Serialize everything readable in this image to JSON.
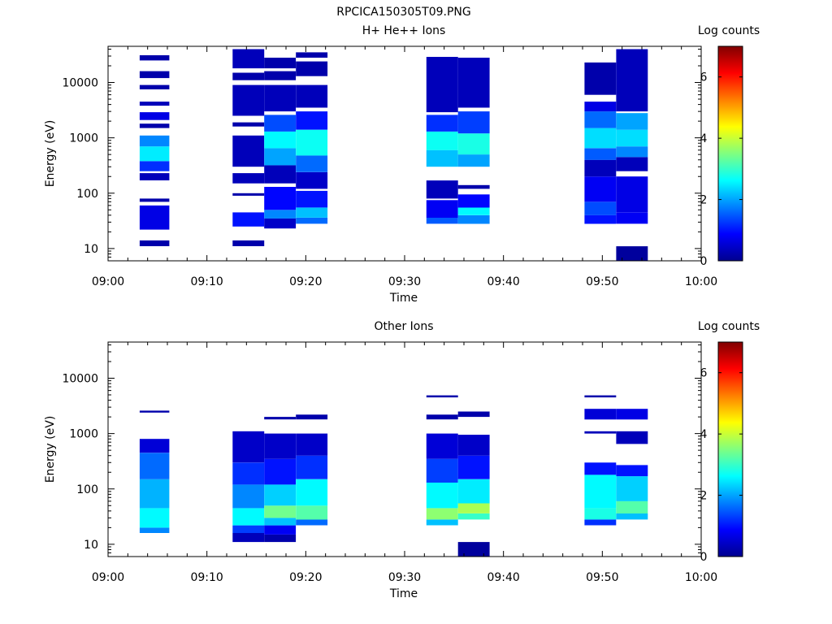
{
  "figure_title": "RPCICA150305T09.PNG",
  "chart_data": [
    {
      "type": "heatmap",
      "title": "H+ He++ Ions",
      "xlabel": "Time",
      "ylabel": "Energy (eV)",
      "x_ticks": [
        "09:00",
        "09:10",
        "09:20",
        "09:30",
        "09:40",
        "09:50",
        "10:00"
      ],
      "xlim": [
        "09:00",
        "10:00"
      ],
      "y_scale": "log",
      "ylim": [
        6,
        45000
      ],
      "y_ticks": [
        "10",
        "100",
        "1000",
        "10000"
      ],
      "colorbar": {
        "label": "Log counts",
        "range": [
          0,
          7
        ],
        "ticks": [
          "0",
          "2",
          "4",
          "6"
        ],
        "colormap": "jet"
      },
      "columns": [
        {
          "start": "09:03.2",
          "end": "09:06.2",
          "bands": [
            {
              "lo": 11,
              "hi": 14,
              "v": 0.3
            },
            {
              "lo": 22,
              "hi": 60,
              "v": 0.7
            },
            {
              "lo": 70,
              "hi": 80,
              "v": 0.3
            },
            {
              "lo": 170,
              "hi": 230,
              "v": 0.4
            },
            {
              "lo": 250,
              "hi": 380,
              "v": 1.2
            },
            {
              "lo": 380,
              "hi": 700,
              "v": 2.5
            },
            {
              "lo": 700,
              "hi": 1100,
              "v": 1.8
            },
            {
              "lo": 1500,
              "hi": 1800,
              "v": 0.3
            },
            {
              "lo": 2100,
              "hi": 2900,
              "v": 0.7
            },
            {
              "lo": 3800,
              "hi": 4500,
              "v": 0.4
            },
            {
              "lo": 7500,
              "hi": 9000,
              "v": 0.3
            },
            {
              "lo": 12000,
              "hi": 16000,
              "v": 0.3
            },
            {
              "lo": 25000,
              "hi": 31000,
              "v": 0.3
            }
          ]
        },
        {
          "start": "09:12.6",
          "end": "09:15.8",
          "bands": [
            {
              "lo": 11,
              "hi": 14,
              "v": 0.3
            },
            {
              "lo": 25,
              "hi": 45,
              "v": 1.0
            },
            {
              "lo": 90,
              "hi": 100,
              "v": 0.3
            },
            {
              "lo": 150,
              "hi": 230,
              "v": 0.4
            },
            {
              "lo": 300,
              "hi": 1100,
              "v": 0.4
            },
            {
              "lo": 1600,
              "hi": 1900,
              "v": 0.3
            },
            {
              "lo": 2500,
              "hi": 9000,
              "v": 0.4
            },
            {
              "lo": 11000,
              "hi": 15000,
              "v": 0.3
            },
            {
              "lo": 18000,
              "hi": 40000,
              "v": 0.4
            }
          ]
        },
        {
          "start": "09:15.8",
          "end": "09:19.0",
          "bands": [
            {
              "lo": 23,
              "hi": 35,
              "v": 0.5
            },
            {
              "lo": 35,
              "hi": 50,
              "v": 1.8
            },
            {
              "lo": 50,
              "hi": 130,
              "v": 0.9
            },
            {
              "lo": 150,
              "hi": 320,
              "v": 0.4
            },
            {
              "lo": 320,
              "hi": 650,
              "v": 2.0
            },
            {
              "lo": 650,
              "hi": 1300,
              "v": 2.6
            },
            {
              "lo": 1300,
              "hi": 2600,
              "v": 1.4
            },
            {
              "lo": 3000,
              "hi": 9000,
              "v": 0.4
            },
            {
              "lo": 11000,
              "hi": 16000,
              "v": 0.3
            },
            {
              "lo": 18000,
              "hi": 28000,
              "v": 0.3
            }
          ]
        },
        {
          "start": "09:19.0",
          "end": "09:22.2",
          "bands": [
            {
              "lo": 28,
              "hi": 36,
              "v": 1.6
            },
            {
              "lo": 36,
              "hi": 55,
              "v": 2.2
            },
            {
              "lo": 55,
              "hi": 110,
              "v": 1.0
            },
            {
              "lo": 120,
              "hi": 240,
              "v": 0.5
            },
            {
              "lo": 240,
              "hi": 480,
              "v": 1.6
            },
            {
              "lo": 480,
              "hi": 1400,
              "v": 2.7
            },
            {
              "lo": 1400,
              "hi": 3000,
              "v": 1.0
            },
            {
              "lo": 3500,
              "hi": 9000,
              "v": 0.4
            },
            {
              "lo": 13000,
              "hi": 24000,
              "v": 0.3
            },
            {
              "lo": 28000,
              "hi": 35000,
              "v": 0.3
            }
          ]
        },
        {
          "start": "09:32.2",
          "end": "09:35.4",
          "bands": [
            {
              "lo": 28,
              "hi": 36,
              "v": 1.5
            },
            {
              "lo": 36,
              "hi": 75,
              "v": 0.8
            },
            {
              "lo": 80,
              "hi": 170,
              "v": 0.4
            },
            {
              "lo": 300,
              "hi": 600,
              "v": 2.2
            },
            {
              "lo": 600,
              "hi": 1300,
              "v": 2.7
            },
            {
              "lo": 1300,
              "hi": 2600,
              "v": 1.2
            },
            {
              "lo": 2900,
              "hi": 29000,
              "v": 0.4
            }
          ]
        },
        {
          "start": "09:35.4",
          "end": "09:38.6",
          "bands": [
            {
              "lo": 28,
              "hi": 40,
              "v": 1.8
            },
            {
              "lo": 40,
              "hi": 55,
              "v": 2.6
            },
            {
              "lo": 55,
              "hi": 95,
              "v": 0.9
            },
            {
              "lo": 120,
              "hi": 140,
              "v": 0.3
            },
            {
              "lo": 300,
              "hi": 500,
              "v": 2.0
            },
            {
              "lo": 500,
              "hi": 1200,
              "v": 2.8
            },
            {
              "lo": 1200,
              "hi": 3000,
              "v": 1.3
            },
            {
              "lo": 3500,
              "hi": 28000,
              "v": 0.4
            }
          ]
        },
        {
          "start": "09:48.2",
          "end": "09:51.4",
          "bands": [
            {
              "lo": 28,
              "hi": 40,
              "v": 1.0
            },
            {
              "lo": 40,
              "hi": 70,
              "v": 1.4
            },
            {
              "lo": 70,
              "hi": 200,
              "v": 0.8
            },
            {
              "lo": 200,
              "hi": 400,
              "v": 0.4
            },
            {
              "lo": 400,
              "hi": 650,
              "v": 1.5
            },
            {
              "lo": 650,
              "hi": 1500,
              "v": 2.4
            },
            {
              "lo": 1500,
              "hi": 3000,
              "v": 1.6
            },
            {
              "lo": 3000,
              "hi": 4500,
              "v": 0.7
            },
            {
              "lo": 6000,
              "hi": 23000,
              "v": 0.3
            }
          ]
        },
        {
          "start": "09:51.4",
          "end": "09:54.6",
          "bands": [
            {
              "lo": 6,
              "hi": 11,
              "v": 0.2
            },
            {
              "lo": 28,
              "hi": 45,
              "v": 0.8
            },
            {
              "lo": 45,
              "hi": 200,
              "v": 0.7
            },
            {
              "lo": 250,
              "hi": 450,
              "v": 0.4
            },
            {
              "lo": 450,
              "hi": 700,
              "v": 1.8
            },
            {
              "lo": 700,
              "hi": 1400,
              "v": 2.4
            },
            {
              "lo": 1400,
              "hi": 2800,
              "v": 2.0
            },
            {
              "lo": 3000,
              "hi": 40000,
              "v": 0.4
            }
          ]
        }
      ]
    },
    {
      "type": "heatmap",
      "title": "Other Ions",
      "xlabel": "Time",
      "ylabel": "Energy (eV)",
      "x_ticks": [
        "09:00",
        "09:10",
        "09:20",
        "09:30",
        "09:40",
        "09:50",
        "10:00"
      ],
      "xlim": [
        "09:00",
        "10:00"
      ],
      "y_scale": "log",
      "ylim": [
        6,
        45000
      ],
      "y_ticks": [
        "10",
        "100",
        "1000",
        "10000"
      ],
      "colorbar": {
        "label": "Log counts",
        "range": [
          0,
          7
        ],
        "ticks": [
          "0",
          "2",
          "4",
          "6"
        ],
        "colormap": "jet"
      },
      "columns": [
        {
          "start": "09:03.2",
          "end": "09:06.2",
          "bands": [
            {
              "lo": 16,
              "hi": 20,
              "v": 1.8
            },
            {
              "lo": 20,
              "hi": 45,
              "v": 2.6
            },
            {
              "lo": 45,
              "hi": 150,
              "v": 2.1
            },
            {
              "lo": 150,
              "hi": 450,
              "v": 1.6
            },
            {
              "lo": 450,
              "hi": 800,
              "v": 0.6
            },
            {
              "lo": 2400,
              "hi": 2600,
              "v": 0.3
            }
          ]
        },
        {
          "start": "09:12.6",
          "end": "09:15.8",
          "bands": [
            {
              "lo": 11,
              "hi": 16,
              "v": 0.4
            },
            {
              "lo": 16,
              "hi": 22,
              "v": 1.3
            },
            {
              "lo": 22,
              "hi": 45,
              "v": 2.6
            },
            {
              "lo": 45,
              "hi": 120,
              "v": 1.8
            },
            {
              "lo": 120,
              "hi": 300,
              "v": 1.2
            },
            {
              "lo": 300,
              "hi": 1100,
              "v": 0.5
            }
          ]
        },
        {
          "start": "09:15.8",
          "end": "09:19.0",
          "bands": [
            {
              "lo": 11,
              "hi": 15,
              "v": 0.3
            },
            {
              "lo": 15,
              "hi": 22,
              "v": 0.8
            },
            {
              "lo": 22,
              "hi": 30,
              "v": 2.2
            },
            {
              "lo": 30,
              "hi": 50,
              "v": 3.4
            },
            {
              "lo": 50,
              "hi": 120,
              "v": 2.3
            },
            {
              "lo": 120,
              "hi": 350,
              "v": 1.0
            },
            {
              "lo": 350,
              "hi": 1000,
              "v": 0.5
            },
            {
              "lo": 1800,
              "hi": 2000,
              "v": 0.3
            }
          ]
        },
        {
          "start": "09:19.0",
          "end": "09:22.2",
          "bands": [
            {
              "lo": 22,
              "hi": 28,
              "v": 1.6
            },
            {
              "lo": 28,
              "hi": 50,
              "v": 3.2
            },
            {
              "lo": 50,
              "hi": 150,
              "v": 2.6
            },
            {
              "lo": 150,
              "hi": 400,
              "v": 1.2
            },
            {
              "lo": 400,
              "hi": 1000,
              "v": 0.5
            },
            {
              "lo": 1800,
              "hi": 2200,
              "v": 0.3
            }
          ]
        },
        {
          "start": "09:32.2",
          "end": "09:35.4",
          "bands": [
            {
              "lo": 22,
              "hi": 28,
              "v": 2.2
            },
            {
              "lo": 28,
              "hi": 45,
              "v": 3.6
            },
            {
              "lo": 45,
              "hi": 130,
              "v": 2.6
            },
            {
              "lo": 130,
              "hi": 350,
              "v": 1.3
            },
            {
              "lo": 350,
              "hi": 1000,
              "v": 0.6
            },
            {
              "lo": 1800,
              "hi": 2200,
              "v": 0.3
            },
            {
              "lo": 4500,
              "hi": 4900,
              "v": 0.3
            }
          ]
        },
        {
          "start": "09:35.4",
          "end": "09:38.6",
          "bands": [
            {
              "lo": 6,
              "hi": 11,
              "v": 0.2
            },
            {
              "lo": 28,
              "hi": 36,
              "v": 3.0
            },
            {
              "lo": 36,
              "hi": 55,
              "v": 3.8
            },
            {
              "lo": 55,
              "hi": 150,
              "v": 2.5
            },
            {
              "lo": 150,
              "hi": 400,
              "v": 1.0
            },
            {
              "lo": 400,
              "hi": 950,
              "v": 0.5
            },
            {
              "lo": 2000,
              "hi": 2500,
              "v": 0.3
            }
          ]
        },
        {
          "start": "09:48.2",
          "end": "09:51.4",
          "bands": [
            {
              "lo": 22,
              "hi": 28,
              "v": 1.2
            },
            {
              "lo": 28,
              "hi": 45,
              "v": 2.8
            },
            {
              "lo": 45,
              "hi": 180,
              "v": 2.6
            },
            {
              "lo": 180,
              "hi": 300,
              "v": 1.0
            },
            {
              "lo": 1000,
              "hi": 1100,
              "v": 0.4
            },
            {
              "lo": 1800,
              "hi": 2800,
              "v": 0.6
            },
            {
              "lo": 4500,
              "hi": 4900,
              "v": 0.3
            }
          ]
        },
        {
          "start": "09:51.4",
          "end": "09:54.6",
          "bands": [
            {
              "lo": 28,
              "hi": 36,
              "v": 2.2
            },
            {
              "lo": 36,
              "hi": 60,
              "v": 3.2
            },
            {
              "lo": 60,
              "hi": 170,
              "v": 2.3
            },
            {
              "lo": 170,
              "hi": 270,
              "v": 1.0
            },
            {
              "lo": 650,
              "hi": 1100,
              "v": 0.4
            },
            {
              "lo": 1800,
              "hi": 2800,
              "v": 0.7
            }
          ]
        }
      ]
    }
  ]
}
